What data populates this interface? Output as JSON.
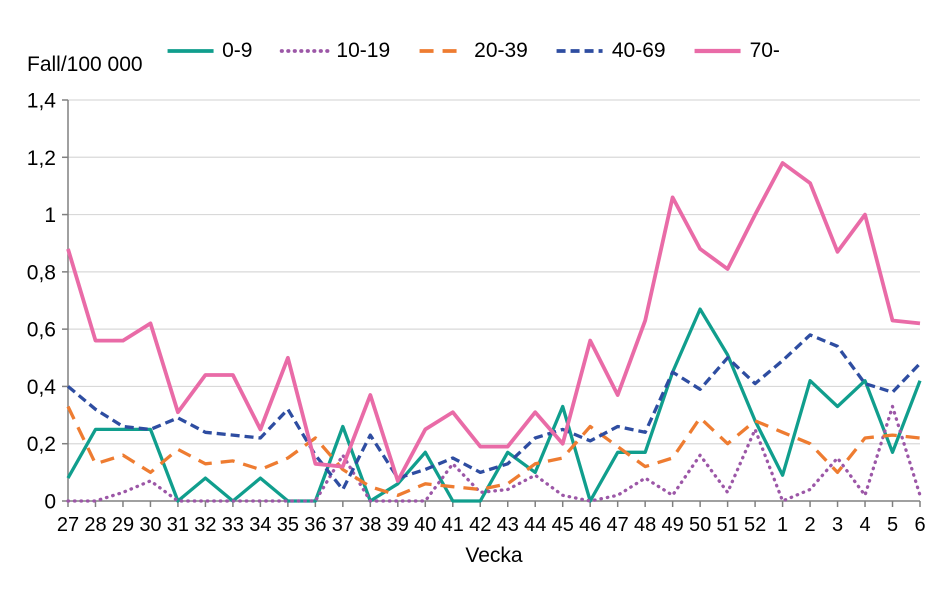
{
  "chart_data": {
    "type": "line",
    "ylabel": "Fall/100 000",
    "xlabel": "Vecka",
    "ylim": [
      0,
      1.4
    ],
    "grid": "horizontal",
    "legend_position": "top",
    "ytick_values": [
      0,
      0.2,
      0.4,
      0.6,
      0.8,
      1,
      1.2,
      1.4
    ],
    "ytick_labels": [
      "0",
      "0,2",
      "0,4",
      "0,6",
      "0,8",
      "1",
      "1,2",
      "1,4"
    ],
    "categories": [
      "27",
      "28",
      "29",
      "30",
      "31",
      "32",
      "33",
      "34",
      "35",
      "36",
      "37",
      "38",
      "39",
      "40",
      "41",
      "42",
      "43",
      "44",
      "45",
      "46",
      "47",
      "48",
      "49",
      "50",
      "51",
      "52",
      "1",
      "2",
      "3",
      "4",
      "5",
      "6"
    ],
    "series": [
      {
        "name": "0-9",
        "color": "#109e8d",
        "style": "solid",
        "values": [
          0.08,
          0.25,
          0.25,
          0.25,
          0,
          0.08,
          0,
          0.08,
          0,
          0,
          0.26,
          0,
          0.06,
          0.17,
          0,
          0,
          0.17,
          0.1,
          0.33,
          0,
          0.17,
          0.17,
          0.45,
          0.67,
          0.51,
          0.28,
          0.09,
          0.42,
          0.33,
          0.42,
          0.17,
          0.42
        ]
      },
      {
        "name": "10-19",
        "color": "#9c57a7",
        "style": "dotted",
        "values": [
          0,
          0,
          0.03,
          0.07,
          0,
          0,
          0,
          0,
          0,
          0,
          0.16,
          0,
          0,
          0,
          0.13,
          0.03,
          0.04,
          0.09,
          0.02,
          0,
          0.02,
          0.08,
          0.02,
          0.16,
          0.03,
          0.25,
          0,
          0.04,
          0.15,
          0.02,
          0.33,
          0.02
        ]
      },
      {
        "name": "20-39",
        "color": "#ee7c31",
        "style": "dashed-long",
        "values": [
          0.33,
          0.13,
          0.16,
          0.1,
          0.18,
          0.13,
          0.14,
          0.11,
          0.15,
          0.22,
          0.11,
          0.05,
          0.02,
          0.06,
          0.05,
          0.04,
          0.06,
          0.13,
          0.15,
          0.26,
          0.19,
          0.12,
          0.15,
          0.29,
          0.2,
          0.28,
          0.24,
          0.2,
          0.1,
          0.22,
          0.23,
          0.22
        ]
      },
      {
        "name": "40-69",
        "color": "#2e4da1",
        "style": "dashed",
        "values": [
          0.4,
          0.32,
          0.26,
          0.25,
          0.29,
          0.24,
          0.23,
          0.22,
          0.32,
          0.16,
          0.04,
          0.23,
          0.08,
          0.11,
          0.15,
          0.1,
          0.13,
          0.22,
          0.25,
          0.21,
          0.26,
          0.24,
          0.45,
          0.39,
          0.5,
          0.41,
          0.49,
          0.58,
          0.54,
          0.41,
          0.38,
          0.48
        ]
      },
      {
        "name": "70-",
        "color": "#e96ba7",
        "style": "solid-thick",
        "values": [
          0.88,
          0.56,
          0.56,
          0.62,
          0.31,
          0.44,
          0.44,
          0.25,
          0.5,
          0.13,
          0.12,
          0.37,
          0.07,
          0.25,
          0.31,
          0.19,
          0.19,
          0.31,
          0.2,
          0.56,
          0.37,
          0.63,
          1.06,
          0.88,
          0.81,
          1.0,
          1.18,
          1.11,
          0.87,
          1.0,
          0.63,
          0.62
        ]
      }
    ]
  },
  "colors": {
    "grid": "#d9d9d9",
    "axis": "#808080",
    "text": "#000000",
    "background": "#ffffff"
  }
}
